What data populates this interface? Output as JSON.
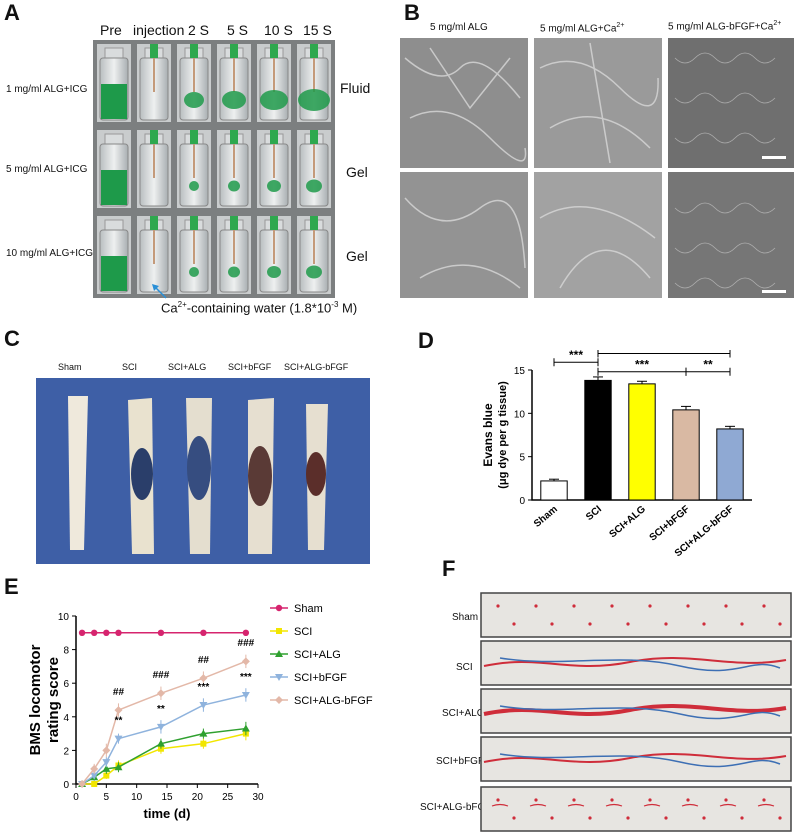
{
  "panel_labels": {
    "A": "A",
    "B": "B",
    "C": "C",
    "D": "D",
    "E": "E",
    "F": "F"
  },
  "panelA": {
    "time_headers": [
      "Pre",
      "injection",
      "2 S",
      "5 S",
      "10 S",
      "15 S"
    ],
    "rows": [
      {
        "label": "1 mg/ml ALG+ICG",
        "state": "Fluid"
      },
      {
        "label": "5 mg/ml ALG+ICG",
        "state": "Gel"
      },
      {
        "label": "10 mg/ml ALG+ICG",
        "state": "Gel"
      }
    ],
    "caption_pre": "Ca",
    "caption_sup": "2+",
    "caption_post": "-containing water (1.8*10",
    "caption_exp": "-3",
    "caption_end": " M)"
  },
  "panelB": {
    "col1": "5 mg/ml ALG",
    "col2_pre": "5 mg/ml ALG+Ca",
    "col2_sup": "2+",
    "col3_pre": "5 mg/ml ALG-bFGF+Ca",
    "col3_sup": "2+"
  },
  "panelC": {
    "labels": [
      "Sham",
      "SCI",
      "SCI+ALG",
      "SCI+bFGF",
      "SCI+ALG-bFGF"
    ]
  },
  "chart_data": [
    {
      "type": "bar",
      "panel": "D",
      "ylabel_line1": "Evans blue",
      "ylabel_line2": "(μg dye per g tissue)",
      "categories": [
        "Sham",
        "SCI",
        "SCI+ALG",
        "SCI+bFGF",
        "SCI+ALG-bFGF"
      ],
      "values": [
        2.2,
        13.8,
        13.4,
        10.4,
        8.2
      ],
      "errors": [
        0.2,
        0.4,
        0.3,
        0.4,
        0.3
      ],
      "colors": [
        "#ffffff",
        "#000000",
        "#ffff00",
        "#d9b9a3",
        "#8fa9d3"
      ],
      "ylim": [
        0,
        15
      ],
      "yticks": [
        0,
        5,
        10,
        15
      ],
      "significance": [
        {
          "from": 0,
          "to": 1,
          "label": "***"
        },
        {
          "from": 1,
          "to": 4,
          "label": "***"
        },
        {
          "from": 1,
          "to": 3,
          "label": "***"
        },
        {
          "from": 3,
          "to": 4,
          "label": "**"
        }
      ]
    },
    {
      "type": "line",
      "panel": "E",
      "xlabel": "time (d)",
      "ylabel_line1": "BMS locomotor",
      "ylabel_line2": "rating score",
      "xlim": [
        0,
        30
      ],
      "ylim": [
        0,
        10
      ],
      "xticks": [
        0,
        5,
        10,
        15,
        20,
        25,
        30
      ],
      "yticks": [
        0,
        2,
        4,
        6,
        8,
        10
      ],
      "series": [
        {
          "name": "Sham",
          "color": "#d6246e",
          "marker": "circle",
          "x": [
            1,
            3,
            5,
            7,
            14,
            21,
            28
          ],
          "y": [
            9,
            9,
            9,
            9,
            9,
            9,
            9
          ],
          "err": [
            0,
            0,
            0,
            0,
            0,
            0,
            0
          ]
        },
        {
          "name": "SCI",
          "color": "#f2e600",
          "marker": "square",
          "x": [
            1,
            3,
            5,
            7,
            14,
            21,
            28
          ],
          "y": [
            0,
            0,
            0.5,
            1.1,
            2.1,
            2.4,
            3.0
          ],
          "err": [
            0,
            0,
            0.2,
            0.3,
            0.3,
            0.3,
            0.4
          ]
        },
        {
          "name": "SCI+ALG",
          "color": "#2fa02f",
          "marker": "triangle",
          "x": [
            1,
            3,
            5,
            7,
            14,
            21,
            28
          ],
          "y": [
            0,
            0.4,
            0.9,
            1.0,
            2.4,
            3.0,
            3.3
          ],
          "err": [
            0,
            0.2,
            0.3,
            0.3,
            0.3,
            0.3,
            0.4
          ]
        },
        {
          "name": "SCI+bFGF",
          "color": "#8fb3dd",
          "marker": "triangle-down",
          "x": [
            1,
            3,
            5,
            7,
            14,
            21,
            28
          ],
          "y": [
            0,
            0.5,
            1.3,
            2.7,
            3.4,
            4.7,
            5.3
          ],
          "err": [
            0,
            0.2,
            0.3,
            0.3,
            0.4,
            0.4,
            0.4
          ]
        },
        {
          "name": "SCI+ALG-bFGF",
          "color": "#e3b8a8",
          "marker": "diamond",
          "x": [
            1,
            3,
            5,
            7,
            14,
            21,
            28
          ],
          "y": [
            0,
            0.9,
            2.0,
            4.4,
            5.4,
            6.3,
            7.3
          ],
          "err": [
            0,
            0.3,
            0.4,
            0.4,
            0.4,
            0.4,
            0.4
          ]
        }
      ],
      "annotations": [
        {
          "x": 7,
          "y": 5.3,
          "label": "##"
        },
        {
          "x": 7,
          "y": 3.6,
          "label": "**"
        },
        {
          "x": 14,
          "y": 6.3,
          "label": "###"
        },
        {
          "x": 14,
          "y": 4.3,
          "label": "**"
        },
        {
          "x": 21,
          "y": 7.2,
          "label": "##"
        },
        {
          "x": 21,
          "y": 5.6,
          "label": "***"
        },
        {
          "x": 28,
          "y": 8.2,
          "label": "###"
        },
        {
          "x": 28,
          "y": 6.2,
          "label": "***"
        }
      ]
    }
  ],
  "panelF": {
    "labels": [
      "Sham",
      "SCI",
      "SCI+ALG",
      "SCI+bFGF",
      "SCI+ALG-bFGF"
    ]
  }
}
